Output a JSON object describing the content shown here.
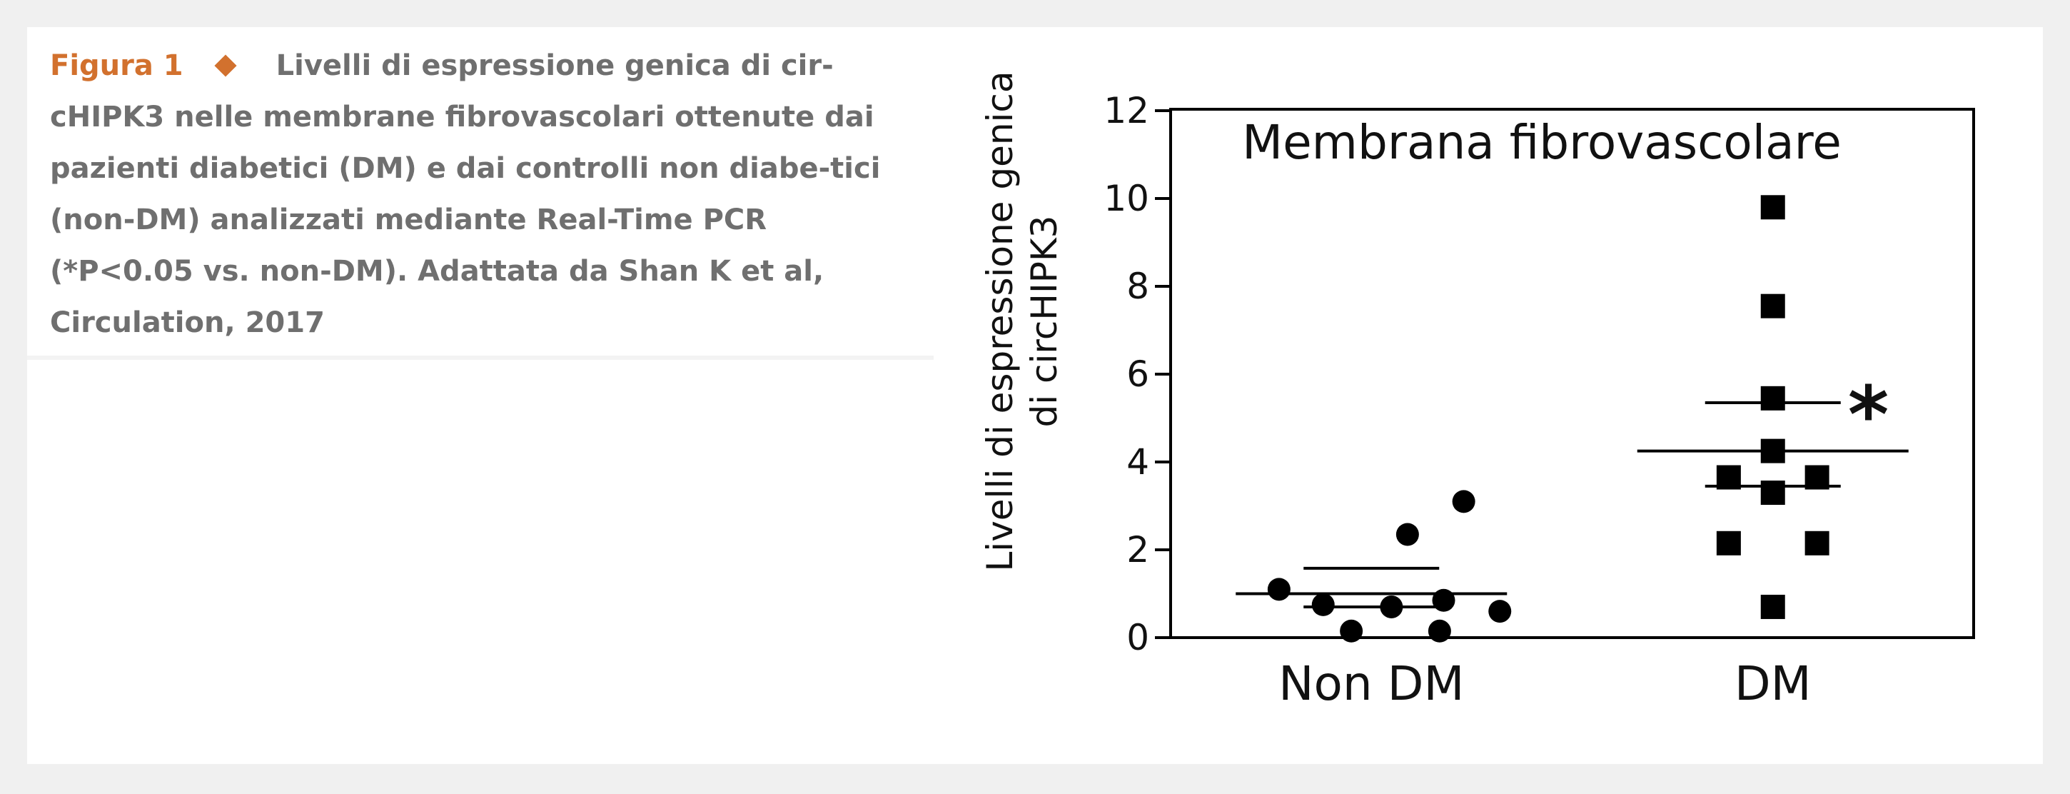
{
  "caption": {
    "label": "Figura 1",
    "text": "Livelli di espressione genica di cir-cHIPK3 nelle membrane fibrovascolari ottenute dai pazienti diabetici (DM) e dai controlli non diabe-tici (non-DM) analizzati mediante Real-Time PCR (*P<0.05 vs. non-DM). Adattata da Shan K et al, Circulation, 2017"
  },
  "colors": {
    "accent": "#d2712e",
    "caption_text": "#6f6f6f",
    "marker": "#000000",
    "background": "#f0f0f0",
    "panel": "#ffffff"
  },
  "chart_data": {
    "type": "scatter",
    "title": "Membrana fibrovascolare",
    "ylabel": "Livelli di espressione genica di circHIPK3",
    "ylabel_lines": [
      "Livelli di espressione genica",
      "di circHIPK3"
    ],
    "xlabel": "",
    "ylim": [
      0,
      12
    ],
    "yticks": [
      0,
      2,
      4,
      6,
      8,
      10,
      12
    ],
    "categories": [
      "Non DM",
      "DM"
    ],
    "grid": false,
    "legend": "none",
    "series": [
      {
        "category": "Non DM",
        "marker": "circle",
        "points": [
          {
            "x": 0.73,
            "y": 3.1
          },
          {
            "x": 0.59,
            "y": 2.35
          },
          {
            "x": 0.27,
            "y": 1.1
          },
          {
            "x": 0.38,
            "y": 0.75
          },
          {
            "x": 0.55,
            "y": 0.7
          },
          {
            "x": 0.68,
            "y": 0.85
          },
          {
            "x": 0.82,
            "y": 0.6
          },
          {
            "x": 0.45,
            "y": 0.15
          },
          {
            "x": 0.67,
            "y": 0.15
          }
        ],
        "mean": 1.0,
        "sem_upper": 1.58,
        "sem_lower": 0.7
      },
      {
        "category": "DM",
        "marker": "square",
        "points": [
          {
            "x": 1.5,
            "y": 9.8
          },
          {
            "x": 1.5,
            "y": 7.55
          },
          {
            "x": 1.5,
            "y": 5.45
          },
          {
            "x": 1.5,
            "y": 4.25
          },
          {
            "x": 1.39,
            "y": 3.65
          },
          {
            "x": 1.61,
            "y": 3.65
          },
          {
            "x": 1.5,
            "y": 3.3
          },
          {
            "x": 1.39,
            "y": 2.15
          },
          {
            "x": 1.61,
            "y": 2.15
          },
          {
            "x": 1.5,
            "y": 0.7
          }
        ],
        "mean": 4.25,
        "sem_upper": 5.35,
        "sem_lower": 3.45,
        "annotation": "*"
      }
    ]
  }
}
